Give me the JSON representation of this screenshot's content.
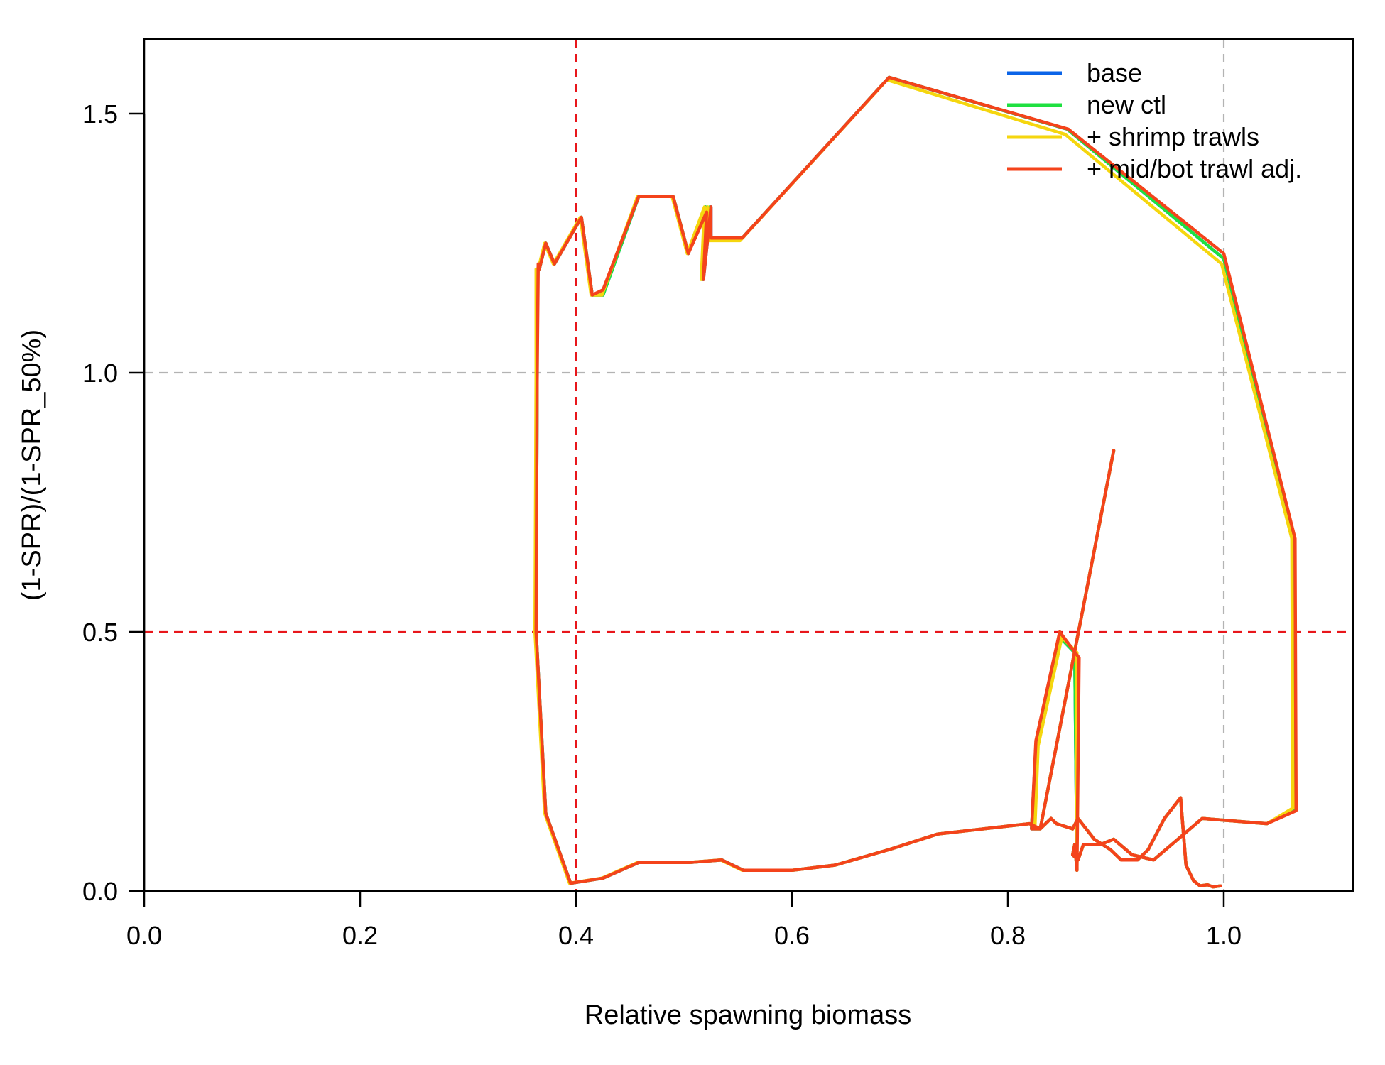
{
  "chart_data": {
    "type": "line",
    "title": "",
    "xlabel": "Relative spawning biomass",
    "ylabel": "(1-SPR)/(1-SPR_50%)",
    "xlim": [
      0,
      1.12
    ],
    "ylim": [
      0,
      1.62
    ],
    "x_ticks": [
      "0.0",
      "0.2",
      "0.4",
      "0.6",
      "0.8",
      "1.0"
    ],
    "y_ticks": [
      "0.0",
      "0.5",
      "1.0",
      "1.5"
    ],
    "grid": false,
    "legend_position": "top-right",
    "reference_lines": [
      {
        "orientation": "vertical",
        "value": 0.4,
        "color": "#e8161b",
        "style": "dashed"
      },
      {
        "orientation": "horizontal",
        "value": 0.5,
        "color": "#e8161b",
        "style": "dashed"
      },
      {
        "orientation": "vertical",
        "value": 1.0,
        "color": "#b3b3b3",
        "style": "dashed"
      },
      {
        "orientation": "horizontal",
        "value": 1.0,
        "color": "#b3b3b3",
        "style": "dashed"
      }
    ],
    "series": [
      {
        "name": "base",
        "color": "#0b64e8",
        "points": [
          [
            0.997,
            0.01
          ],
          [
            0.99,
            0.008
          ],
          [
            0.985,
            0.012
          ],
          [
            0.978,
            0.01
          ],
          [
            0.972,
            0.02
          ],
          [
            0.965,
            0.05
          ],
          [
            0.96,
            0.18
          ],
          [
            0.945,
            0.14
          ],
          [
            0.93,
            0.08
          ],
          [
            0.92,
            0.06
          ],
          [
            0.905,
            0.06
          ],
          [
            0.895,
            0.08
          ],
          [
            0.88,
            0.1
          ],
          [
            0.865,
            0.14
          ],
          [
            0.86,
            0.12
          ],
          [
            0.845,
            0.13
          ],
          [
            0.84,
            0.14
          ],
          [
            0.83,
            0.12
          ],
          [
            0.822,
            0.12
          ],
          [
            0.826,
            0.28
          ],
          [
            0.848,
            0.49
          ],
          [
            0.862,
            0.46
          ],
          [
            0.864,
            0.04
          ],
          [
            0.862,
            0.09
          ],
          [
            0.86,
            0.07
          ],
          [
            0.865,
            0.06
          ],
          [
            0.87,
            0.09
          ],
          [
            0.886,
            0.09
          ],
          [
            0.898,
            0.1
          ],
          [
            0.915,
            0.07
          ],
          [
            0.935,
            0.06
          ],
          [
            0.98,
            0.14
          ],
          [
            1.04,
            0.13
          ],
          [
            1.066,
            0.16
          ],
          [
            1.065,
            0.68
          ],
          [
            1.0,
            1.22
          ],
          [
            0.855,
            1.47
          ],
          [
            0.69,
            1.57
          ],
          [
            0.554,
            1.26
          ],
          [
            0.525,
            1.26
          ],
          [
            0.525,
            1.32
          ],
          [
            0.518,
            1.18
          ],
          [
            0.52,
            1.32
          ],
          [
            0.504,
            1.23
          ],
          [
            0.49,
            1.34
          ],
          [
            0.458,
            1.34
          ],
          [
            0.425,
            1.15
          ],
          [
            0.415,
            1.15
          ],
          [
            0.405,
            1.3
          ],
          [
            0.38,
            1.21
          ],
          [
            0.372,
            1.25
          ],
          [
            0.366,
            1.2
          ],
          [
            0.364,
            1.2
          ],
          [
            0.364,
            1.0
          ],
          [
            0.363,
            0.5
          ],
          [
            0.372,
            0.15
          ],
          [
            0.395,
            0.015
          ],
          [
            0.425,
            0.025
          ],
          [
            0.458,
            0.055
          ],
          [
            0.505,
            0.055
          ],
          [
            0.535,
            0.06
          ],
          [
            0.555,
            0.04
          ],
          [
            0.575,
            0.04
          ],
          [
            0.6,
            0.04
          ],
          [
            0.64,
            0.05
          ],
          [
            0.69,
            0.08
          ],
          [
            0.735,
            0.11
          ],
          [
            0.82,
            0.13
          ],
          [
            0.83,
            0.12
          ],
          [
            0.898,
            0.85
          ]
        ]
      },
      {
        "name": "new ctl",
        "color": "#1ee040",
        "points": [
          [
            0.997,
            0.01
          ],
          [
            0.99,
            0.008
          ],
          [
            0.985,
            0.012
          ],
          [
            0.978,
            0.01
          ],
          [
            0.972,
            0.02
          ],
          [
            0.965,
            0.05
          ],
          [
            0.96,
            0.18
          ],
          [
            0.945,
            0.14
          ],
          [
            0.93,
            0.08
          ],
          [
            0.92,
            0.06
          ],
          [
            0.905,
            0.06
          ],
          [
            0.895,
            0.08
          ],
          [
            0.88,
            0.1
          ],
          [
            0.865,
            0.14
          ],
          [
            0.86,
            0.12
          ],
          [
            0.845,
            0.13
          ],
          [
            0.84,
            0.14
          ],
          [
            0.83,
            0.12
          ],
          [
            0.822,
            0.12
          ],
          [
            0.826,
            0.28
          ],
          [
            0.848,
            0.49
          ],
          [
            0.862,
            0.46
          ],
          [
            0.864,
            0.04
          ],
          [
            0.862,
            0.09
          ],
          [
            0.86,
            0.07
          ],
          [
            0.865,
            0.06
          ],
          [
            0.87,
            0.09
          ],
          [
            0.886,
            0.09
          ],
          [
            0.898,
            0.1
          ],
          [
            0.915,
            0.07
          ],
          [
            0.935,
            0.06
          ],
          [
            0.98,
            0.14
          ],
          [
            1.04,
            0.13
          ],
          [
            1.066,
            0.16
          ],
          [
            1.065,
            0.68
          ],
          [
            1.0,
            1.22
          ],
          [
            0.855,
            1.47
          ],
          [
            0.69,
            1.57
          ],
          [
            0.554,
            1.26
          ],
          [
            0.525,
            1.26
          ],
          [
            0.524,
            1.32
          ],
          [
            0.517,
            1.18
          ],
          [
            0.52,
            1.32
          ],
          [
            0.504,
            1.23
          ],
          [
            0.49,
            1.34
          ],
          [
            0.458,
            1.34
          ],
          [
            0.425,
            1.15
          ],
          [
            0.415,
            1.15
          ],
          [
            0.405,
            1.3
          ],
          [
            0.38,
            1.21
          ],
          [
            0.372,
            1.25
          ],
          [
            0.366,
            1.2
          ],
          [
            0.364,
            1.2
          ],
          [
            0.364,
            1.0
          ],
          [
            0.363,
            0.5
          ],
          [
            0.372,
            0.15
          ],
          [
            0.395,
            0.015
          ],
          [
            0.425,
            0.025
          ],
          [
            0.458,
            0.055
          ],
          [
            0.505,
            0.055
          ],
          [
            0.535,
            0.06
          ],
          [
            0.555,
            0.04
          ],
          [
            0.575,
            0.04
          ],
          [
            0.6,
            0.04
          ],
          [
            0.64,
            0.05
          ],
          [
            0.69,
            0.08
          ],
          [
            0.735,
            0.11
          ],
          [
            0.82,
            0.13
          ],
          [
            0.83,
            0.12
          ],
          [
            0.898,
            0.85
          ]
        ]
      },
      {
        "name": "+ shrimp trawls",
        "color": "#f5d60e",
        "points": [
          [
            0.997,
            0.01
          ],
          [
            0.99,
            0.008
          ],
          [
            0.985,
            0.012
          ],
          [
            0.978,
            0.01
          ],
          [
            0.972,
            0.02
          ],
          [
            0.965,
            0.05
          ],
          [
            0.96,
            0.18
          ],
          [
            0.945,
            0.14
          ],
          [
            0.93,
            0.08
          ],
          [
            0.92,
            0.06
          ],
          [
            0.905,
            0.06
          ],
          [
            0.895,
            0.08
          ],
          [
            0.88,
            0.1
          ],
          [
            0.865,
            0.14
          ],
          [
            0.86,
            0.12
          ],
          [
            0.845,
            0.13
          ],
          [
            0.84,
            0.14
          ],
          [
            0.83,
            0.12
          ],
          [
            0.825,
            0.12
          ],
          [
            0.828,
            0.28
          ],
          [
            0.85,
            0.49
          ],
          [
            0.864,
            0.46
          ],
          [
            0.864,
            0.04
          ],
          [
            0.862,
            0.09
          ],
          [
            0.86,
            0.07
          ],
          [
            0.865,
            0.06
          ],
          [
            0.87,
            0.09
          ],
          [
            0.886,
            0.09
          ],
          [
            0.898,
            0.1
          ],
          [
            0.915,
            0.07
          ],
          [
            0.935,
            0.06
          ],
          [
            0.98,
            0.14
          ],
          [
            1.04,
            0.13
          ],
          [
            1.064,
            0.16
          ],
          [
            1.063,
            0.68
          ],
          [
            0.998,
            1.21
          ],
          [
            0.853,
            1.46
          ],
          [
            0.688,
            1.565
          ],
          [
            0.552,
            1.255
          ],
          [
            0.523,
            1.255
          ],
          [
            0.522,
            1.32
          ],
          [
            0.516,
            1.18
          ],
          [
            0.519,
            1.32
          ],
          [
            0.503,
            1.23
          ],
          [
            0.489,
            1.34
          ],
          [
            0.457,
            1.34
          ],
          [
            0.424,
            1.15
          ],
          [
            0.414,
            1.15
          ],
          [
            0.404,
            1.3
          ],
          [
            0.379,
            1.21
          ],
          [
            0.371,
            1.25
          ],
          [
            0.365,
            1.2
          ],
          [
            0.363,
            1.2
          ],
          [
            0.363,
            1.0
          ],
          [
            0.362,
            0.5
          ],
          [
            0.371,
            0.15
          ],
          [
            0.394,
            0.015
          ],
          [
            0.424,
            0.025
          ],
          [
            0.457,
            0.055
          ],
          [
            0.504,
            0.055
          ],
          [
            0.534,
            0.06
          ],
          [
            0.554,
            0.04
          ],
          [
            0.574,
            0.04
          ],
          [
            0.6,
            0.04
          ],
          [
            0.64,
            0.05
          ],
          [
            0.69,
            0.08
          ],
          [
            0.735,
            0.11
          ],
          [
            0.82,
            0.13
          ],
          [
            0.83,
            0.12
          ],
          [
            0.898,
            0.85
          ]
        ]
      },
      {
        "name": "+ mid/bot trawl adj.",
        "color": "#f4431b",
        "points": [
          [
            0.997,
            0.01
          ],
          [
            0.99,
            0.008
          ],
          [
            0.985,
            0.012
          ],
          [
            0.978,
            0.01
          ],
          [
            0.972,
            0.02
          ],
          [
            0.965,
            0.05
          ],
          [
            0.96,
            0.18
          ],
          [
            0.945,
            0.14
          ],
          [
            0.93,
            0.08
          ],
          [
            0.92,
            0.06
          ],
          [
            0.905,
            0.06
          ],
          [
            0.895,
            0.08
          ],
          [
            0.88,
            0.1
          ],
          [
            0.865,
            0.14
          ],
          [
            0.86,
            0.12
          ],
          [
            0.845,
            0.13
          ],
          [
            0.84,
            0.14
          ],
          [
            0.83,
            0.12
          ],
          [
            0.822,
            0.12
          ],
          [
            0.826,
            0.29
          ],
          [
            0.848,
            0.5
          ],
          [
            0.866,
            0.45
          ],
          [
            0.864,
            0.04
          ],
          [
            0.862,
            0.09
          ],
          [
            0.86,
            0.07
          ],
          [
            0.865,
            0.06
          ],
          [
            0.87,
            0.09
          ],
          [
            0.886,
            0.09
          ],
          [
            0.898,
            0.1
          ],
          [
            0.915,
            0.07
          ],
          [
            0.935,
            0.06
          ],
          [
            0.98,
            0.14
          ],
          [
            1.04,
            0.13
          ],
          [
            1.067,
            0.155
          ],
          [
            1.066,
            0.68
          ],
          [
            1.0,
            1.23
          ],
          [
            0.856,
            1.47
          ],
          [
            0.69,
            1.57
          ],
          [
            0.554,
            1.26
          ],
          [
            0.525,
            1.26
          ],
          [
            0.525,
            1.32
          ],
          [
            0.518,
            1.18
          ],
          [
            0.521,
            1.31
          ],
          [
            0.504,
            1.23
          ],
          [
            0.49,
            1.34
          ],
          [
            0.458,
            1.34
          ],
          [
            0.425,
            1.16
          ],
          [
            0.415,
            1.15
          ],
          [
            0.405,
            1.3
          ],
          [
            0.38,
            1.21
          ],
          [
            0.372,
            1.25
          ],
          [
            0.366,
            1.2
          ],
          [
            0.365,
            1.21
          ],
          [
            0.364,
            1.0
          ],
          [
            0.363,
            0.5
          ],
          [
            0.372,
            0.15
          ],
          [
            0.395,
            0.015
          ],
          [
            0.425,
            0.025
          ],
          [
            0.458,
            0.055
          ],
          [
            0.505,
            0.055
          ],
          [
            0.535,
            0.06
          ],
          [
            0.555,
            0.04
          ],
          [
            0.575,
            0.04
          ],
          [
            0.6,
            0.04
          ],
          [
            0.64,
            0.05
          ],
          [
            0.69,
            0.08
          ],
          [
            0.735,
            0.11
          ],
          [
            0.82,
            0.13
          ],
          [
            0.83,
            0.12
          ],
          [
            0.898,
            0.85
          ]
        ]
      }
    ]
  }
}
